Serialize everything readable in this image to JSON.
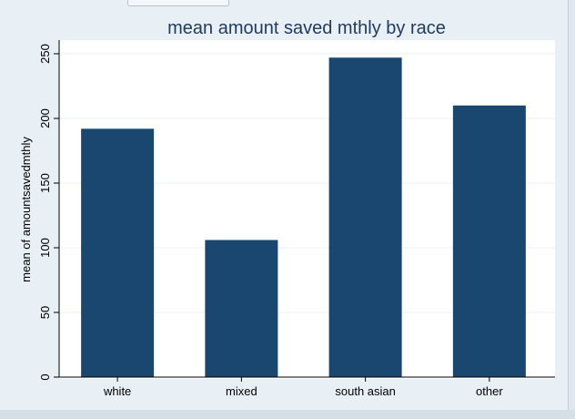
{
  "chart_data": {
    "type": "bar",
    "title": "mean amount saved mthly by race",
    "xlabel": "",
    "ylabel": "mean of amountsavedmthly",
    "categories": [
      "white",
      "mixed",
      "south asian",
      "other"
    ],
    "values": [
      192,
      106,
      247,
      210
    ],
    "ylim": [
      0,
      260
    ],
    "yticks": [
      0,
      50,
      100,
      150,
      200,
      250
    ],
    "grid": true,
    "legend": "none",
    "colors": {
      "bar": "#1a476f",
      "title": "#1e3a5f",
      "grid": "#eaf2f3",
      "axis": "#000000"
    }
  }
}
